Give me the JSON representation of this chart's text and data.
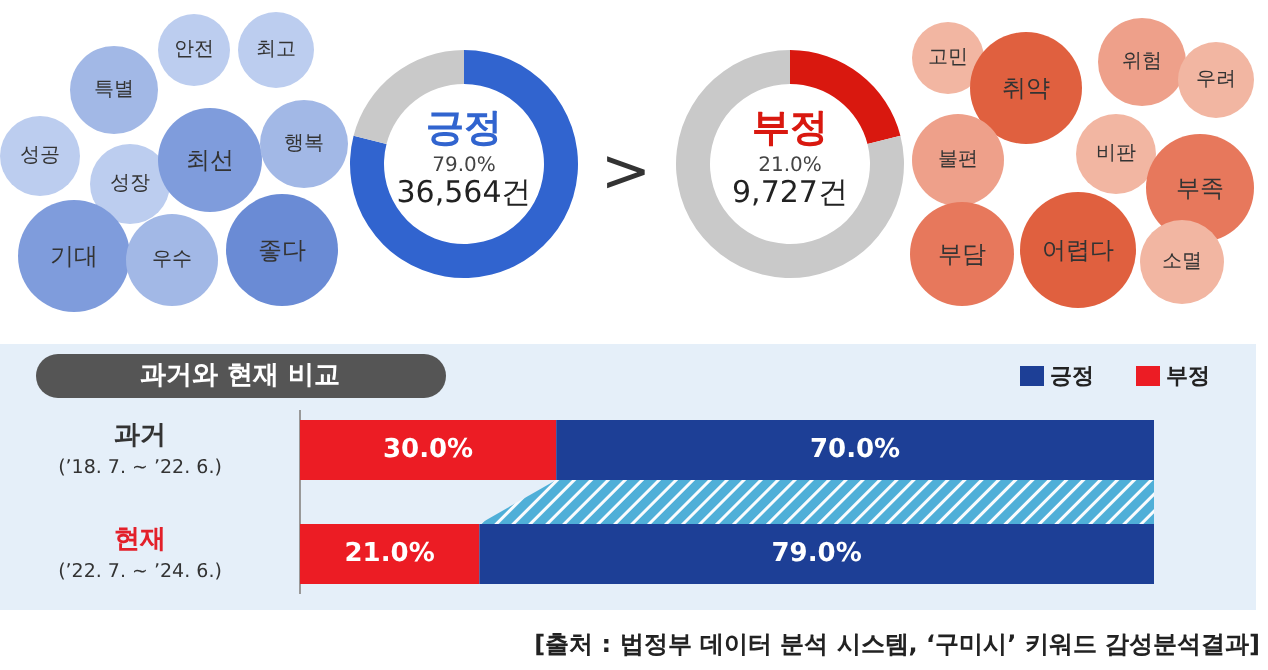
{
  "chart_data": [
    {
      "type": "other",
      "annotations": [
        "안전",
        "최고",
        "특별",
        "성공",
        "성장",
        "최선",
        "행복",
        "기대",
        "우수",
        "좋다"
      ]
    },
    {
      "type": "donut",
      "title": "긍정",
      "categories": [
        null,
        null
      ],
      "values": [
        79.0,
        21.0
      ],
      "colors": [
        "#3164cf",
        "#c9c9c9"
      ],
      "annotations": [
        "79.0%",
        "36,564건",
        ">"
      ]
    },
    {
      "type": "donut",
      "title": "부정",
      "categories": [
        null,
        null
      ],
      "values": [
        21.0,
        79.0
      ],
      "colors": [
        "#d9180f",
        "#c9c9c9"
      ],
      "annotations": [
        "21.0%",
        "9,727건"
      ]
    },
    {
      "type": "other",
      "annotations": [
        "고민",
        "취약",
        "위험",
        "우려",
        "불편",
        "비판",
        "부족",
        "부담",
        "어렵다",
        "소멸"
      ]
    },
    {
      "type": "bar",
      "orientation": "horizontal",
      "stacked": true,
      "title": "과거와 현재 비교",
      "legend": "top right",
      "categories": [
        "과거\n(’18. 7. ~ ’22. 6.)",
        "현재\n(’22. 7. ~ ’24. 6.)"
      ],
      "series": [
        {
          "name": "부정",
          "color": "#ec1c24",
          "values": [
            30.0,
            21.0
          ],
          "value_labels": [
            "30.0%",
            "21.0%"
          ]
        },
        {
          "name": "긍정",
          "color": "#1d3f96",
          "values": [
            70.0,
            79.0
          ],
          "value_labels": [
            "70.0%",
            "79.0%"
          ]
        }
      ],
      "annotations": [
        "[출처 : 법정부 데이터 분석 시스템, ‘구미시’ 키워드 감성분석결과]"
      ]
    }
  ]
}
